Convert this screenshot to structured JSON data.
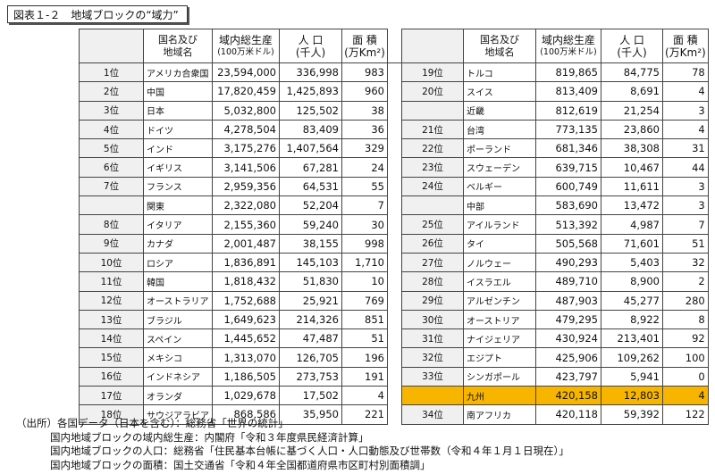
{
  "title": "図表１-２　地域ブロックの“域力”",
  "headers": {
    "name": [
      "国名及び",
      "地域名"
    ],
    "gdp": [
      "域内総生産",
      "(100万米ドル)"
    ],
    "pop": [
      "人 口",
      "(千人)"
    ],
    "area": [
      "面 積",
      "(万Km²)"
    ]
  },
  "left_rows": [
    {
      "rank": "1位",
      "name": "アメリカ合衆国",
      "gdp": "23,594,000",
      "pop": "336,998",
      "area": "983"
    },
    {
      "rank": "2位",
      "name": "中国",
      "gdp": "17,820,459",
      "pop": "1,425,893",
      "area": "960"
    },
    {
      "rank": "3位",
      "name": "日本",
      "gdp": "5,032,800",
      "pop": "125,502",
      "area": "38"
    },
    {
      "rank": "4位",
      "name": "ドイツ",
      "gdp": "4,278,504",
      "pop": "83,409",
      "area": "36"
    },
    {
      "rank": "5位",
      "name": "インド",
      "gdp": "3,175,276",
      "pop": "1,407,564",
      "area": "329"
    },
    {
      "rank": "6位",
      "name": "イギリス",
      "gdp": "3,141,506",
      "pop": "67,281",
      "area": "24"
    },
    {
      "rank": "7位",
      "name": "フランス",
      "gdp": "2,959,356",
      "pop": "64,531",
      "area": "55"
    },
    {
      "rank": "",
      "name": "関東",
      "gdp": "2,322,080",
      "pop": "52,204",
      "area": "7"
    },
    {
      "rank": "8位",
      "name": "イタリア",
      "gdp": "2,155,360",
      "pop": "59,240",
      "area": "30"
    },
    {
      "rank": "9位",
      "name": "カナダ",
      "gdp": "2,001,487",
      "pop": "38,155",
      "area": "998"
    },
    {
      "rank": "10位",
      "name": "ロシア",
      "gdp": "1,836,891",
      "pop": "145,103",
      "area": "1,710"
    },
    {
      "rank": "11位",
      "name": "韓国",
      "gdp": "1,818,432",
      "pop": "51,830",
      "area": "10"
    },
    {
      "rank": "12位",
      "name": "オーストラリア",
      "gdp": "1,752,688",
      "pop": "25,921",
      "area": "769"
    },
    {
      "rank": "13位",
      "name": "ブラジル",
      "gdp": "1,649,623",
      "pop": "214,326",
      "area": "851"
    },
    {
      "rank": "14位",
      "name": "スペイン",
      "gdp": "1,445,652",
      "pop": "47,487",
      "area": "51"
    },
    {
      "rank": "15位",
      "name": "メキシコ",
      "gdp": "1,313,070",
      "pop": "126,705",
      "area": "196"
    },
    {
      "rank": "16位",
      "name": "インドネシア",
      "gdp": "1,186,505",
      "pop": "273,753",
      "area": "191"
    },
    {
      "rank": "17位",
      "name": "オランダ",
      "gdp": "1,029,678",
      "pop": "17,502",
      "area": "4"
    },
    {
      "rank": "18位",
      "name": "サウジアラビア",
      "gdp": "868,586",
      "pop": "35,950",
      "area": "221"
    }
  ],
  "right_rows": [
    {
      "rank": "19位",
      "name": "トルコ",
      "gdp": "819,865",
      "pop": "84,775",
      "area": "78"
    },
    {
      "rank": "20位",
      "name": "スイス",
      "gdp": "813,409",
      "pop": "8,691",
      "area": "4"
    },
    {
      "rank": "",
      "name": "近畿",
      "gdp": "812,619",
      "pop": "21,254",
      "area": "3"
    },
    {
      "rank": "21位",
      "name": "台湾",
      "gdp": "773,135",
      "pop": "23,860",
      "area": "4"
    },
    {
      "rank": "22位",
      "name": "ポーランド",
      "gdp": "681,346",
      "pop": "38,308",
      "area": "31"
    },
    {
      "rank": "23位",
      "name": "スウェーデン",
      "gdp": "639,715",
      "pop": "10,467",
      "area": "44"
    },
    {
      "rank": "24位",
      "name": "ベルギー",
      "gdp": "600,749",
      "pop": "11,611",
      "area": "3"
    },
    {
      "rank": "",
      "name": "中部",
      "gdp": "583,690",
      "pop": "13,472",
      "area": "3"
    },
    {
      "rank": "25位",
      "name": "アイルランド",
      "gdp": "513,392",
      "pop": "4,987",
      "area": "7"
    },
    {
      "rank": "26位",
      "name": "タイ",
      "gdp": "505,568",
      "pop": "71,601",
      "area": "51"
    },
    {
      "rank": "27位",
      "name": "ノルウェー",
      "gdp": "490,293",
      "pop": "5,403",
      "area": "32"
    },
    {
      "rank": "28位",
      "name": "イスラエル",
      "gdp": "489,710",
      "pop": "8,900",
      "area": "2"
    },
    {
      "rank": "29位",
      "name": "アルゼンチン",
      "gdp": "487,903",
      "pop": "45,277",
      "area": "280"
    },
    {
      "rank": "30位",
      "name": "オーストリア",
      "gdp": "479,295",
      "pop": "8,922",
      "area": "8"
    },
    {
      "rank": "31位",
      "name": "ナイジェリア",
      "gdp": "430,924",
      "pop": "213,401",
      "area": "92"
    },
    {
      "rank": "32位",
      "name": "エジプト",
      "gdp": "425,906",
      "pop": "109,262",
      "area": "100"
    },
    {
      "rank": "33位",
      "name": "シンガポール",
      "gdp": "423,797",
      "pop": "5,941",
      "area": "0"
    },
    {
      "rank": "",
      "name": "九州",
      "gdp": "420,158",
      "pop": "12,803",
      "area": "4"
    },
    {
      "rank": "34位",
      "name": "南アフリカ",
      "gdp": "420,118",
      "pop": "59,392",
      "area": "122"
    }
  ],
  "highlight_color": "#f7b500",
  "notes": [
    "（出所）各国データ（日本を含む）：総務省「世界の統計」",
    "国内地域ブロックの域内総生産：内閣府「令和３年度県民経済計算」",
    "国内地域ブロックの人口：総務省「住民基本台帳に基づく人口・人口動態及び世帯数（令和４年１月１日現在）」",
    "国内地域ブロックの面積：国土交通省「令和４年全国都道府県市区町村別面積調」"
  ]
}
